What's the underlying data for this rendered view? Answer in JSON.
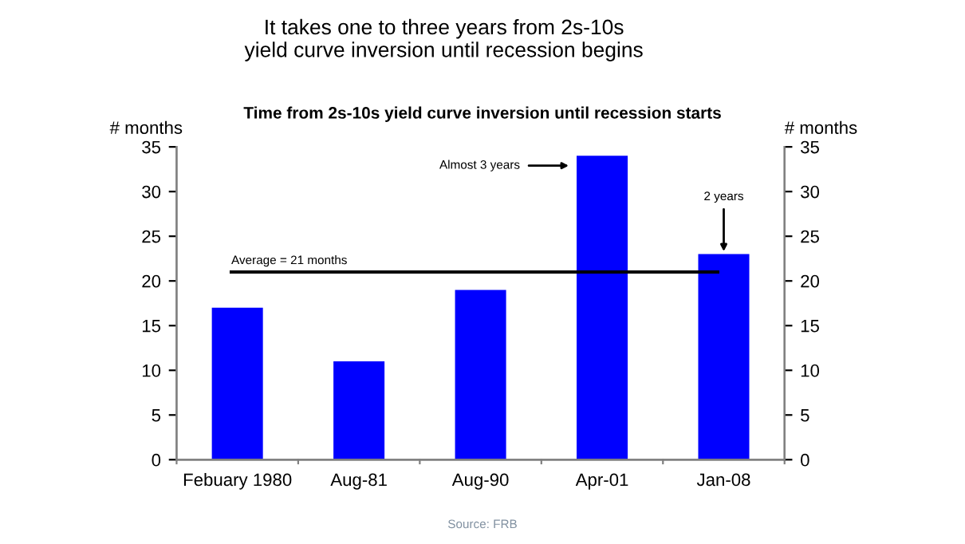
{
  "chart_data": {
    "type": "bar",
    "title": "It takes one to three years from 2s-10s\nyield curve inversion until recession begins",
    "subtitle": "Time from 2s-10s yield curve inversion until recession starts",
    "ylabel": "# months",
    "y2label": "# months",
    "categories": [
      "Febuary 1980",
      "Aug-81",
      "Aug-90",
      "Apr-01",
      "Jan-08"
    ],
    "values": [
      17,
      11,
      19,
      34,
      23
    ],
    "color": "#0000ff",
    "ylim": [
      0,
      35
    ],
    "yticks": [
      0,
      5,
      10,
      15,
      20,
      25,
      30,
      35
    ],
    "y2lim": [
      0,
      35
    ],
    "y2ticks": [
      0,
      5,
      10,
      15,
      20,
      25,
      30,
      35
    ],
    "ref_lines": [
      {
        "axis": "y",
        "value": 21,
        "label": "Average = 21 months",
        "color": "#000000"
      }
    ],
    "annotations": [
      "Almost 3 years",
      {
        "text": "2 years",
        "x": "Jan-08",
        "y": 23
      },
      "Source: FRB"
    ],
    "grid": false,
    "legend": false
  }
}
